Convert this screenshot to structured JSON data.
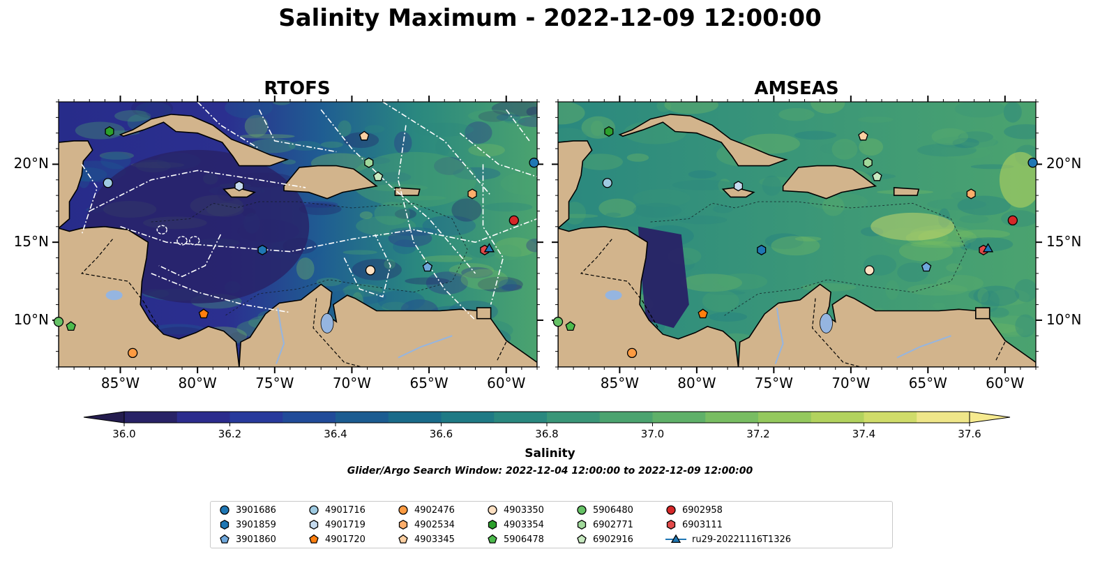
{
  "title": "Salinity Maximum - 2022-12-09 12:00:00",
  "panels": [
    {
      "title": "RTOFS"
    },
    {
      "title": "AMSEAS"
    }
  ],
  "axes": {
    "lon_labels": [
      "85°W",
      "80°W",
      "75°W",
      "70°W",
      "65°W",
      "60°W"
    ],
    "lon_values": [
      -85,
      -80,
      -75,
      -70,
      -65,
      -60
    ],
    "lat_labels": [
      "20°N",
      "15°N",
      "10°N"
    ],
    "lat_values": [
      20,
      15,
      10
    ],
    "lon_range": [
      -89,
      -58
    ],
    "lat_range": [
      7,
      24
    ]
  },
  "colorbar": {
    "label": "Salinity",
    "min": 36.0,
    "max": 37.6,
    "step": 0.1,
    "tick_labels": [
      "36.0",
      "36.2",
      "36.4",
      "36.6",
      "36.8",
      "37.0",
      "37.2",
      "37.4",
      "37.6"
    ],
    "tick_values": [
      36.0,
      36.2,
      36.4,
      36.6,
      36.8,
      37.0,
      37.2,
      37.4,
      37.6
    ],
    "colors": [
      "#282266",
      "#2c2c8d",
      "#283a9c",
      "#214b99",
      "#1c5c91",
      "#1a6b8a",
      "#1f7a85",
      "#2a887f",
      "#3a9678",
      "#4ba36f",
      "#5fb069",
      "#78bd62",
      "#94c85d",
      "#b2d25e",
      "#d0dc6a",
      "#efe689"
    ],
    "under_color": "#241c4e",
    "over_color": "#f6ea8f"
  },
  "search_window": "Glider/Argo Search Window: 2022-12-04 12:00:00 to 2022-12-09 12:00:00",
  "legend": {
    "columns": 7,
    "items": [
      {
        "label": "3901686",
        "marker": "circle",
        "color": "#1f77b4"
      },
      {
        "label": "3901859",
        "marker": "hexagon",
        "color": "#1f77b4"
      },
      {
        "label": "3901860",
        "marker": "pentagon",
        "color": "#6fa8dc"
      },
      {
        "label": "4901716",
        "marker": "circle",
        "color": "#9ecae1"
      },
      {
        "label": "4901719",
        "marker": "hexagon",
        "color": "#c6dbef"
      },
      {
        "label": "4901720",
        "marker": "pentagon",
        "color": "#ff7f0e"
      },
      {
        "label": "4902476",
        "marker": "circle",
        "color": "#fd9b42"
      },
      {
        "label": "4902534",
        "marker": "hexagon",
        "color": "#fdae6b"
      },
      {
        "label": "4903345",
        "marker": "pentagon",
        "color": "#fdd0a2"
      },
      {
        "label": "4903350",
        "marker": "circle",
        "color": "#fee0c2"
      },
      {
        "label": "4903354",
        "marker": "hexagon",
        "color": "#2ca02c"
      },
      {
        "label": "5906478",
        "marker": "pentagon",
        "color": "#4dbb4d"
      },
      {
        "label": "5906480",
        "marker": "circle",
        "color": "#66c266"
      },
      {
        "label": "6902771",
        "marker": "hexagon",
        "color": "#a1d99b"
      },
      {
        "label": "6902916",
        "marker": "pentagon",
        "color": "#c7e9c0"
      },
      {
        "label": "6902958",
        "marker": "circle",
        "color": "#d62728"
      },
      {
        "label": "6903111",
        "marker": "hexagon",
        "color": "#e34a4a"
      },
      {
        "label": "ru29-20221116T1326",
        "marker": "triangle-line",
        "color": "#1f77b4"
      }
    ]
  },
  "platforms": [
    {
      "id": "3901686",
      "lon": -58.2,
      "lat": 20.1
    },
    {
      "id": "3901859",
      "lon": -75.8,
      "lat": 14.5
    },
    {
      "id": "3901860",
      "lon": -65.1,
      "lat": 13.4
    },
    {
      "id": "4901716",
      "lon": -85.8,
      "lat": 18.8
    },
    {
      "id": "4901719",
      "lon": -77.3,
      "lat": 18.6
    },
    {
      "id": "4901720",
      "lon": -79.6,
      "lat": 10.4
    },
    {
      "id": "4902476",
      "lon": -84.2,
      "lat": 7.9
    },
    {
      "id": "4902534",
      "lon": -62.2,
      "lat": 18.1
    },
    {
      "id": "4903345",
      "lon": -69.2,
      "lat": 21.8
    },
    {
      "id": "4903350",
      "lon": -68.8,
      "lat": 13.2
    },
    {
      "id": "4903354",
      "lon": -85.7,
      "lat": 22.1
    },
    {
      "id": "5906478",
      "lon": -88.2,
      "lat": 9.6
    },
    {
      "id": "5906480",
      "lon": -89.0,
      "lat": 9.9
    },
    {
      "id": "6902771",
      "lon": -68.9,
      "lat": 20.1
    },
    {
      "id": "6902916",
      "lon": -68.3,
      "lat": 19.2
    },
    {
      "id": "6902958",
      "lon": -59.5,
      "lat": 16.4
    },
    {
      "id": "6903111",
      "lon": -61.4,
      "lat": 14.5
    },
    {
      "id": "ru29-20221116T1326",
      "lon": -61.1,
      "lat": 14.6
    }
  ]
}
